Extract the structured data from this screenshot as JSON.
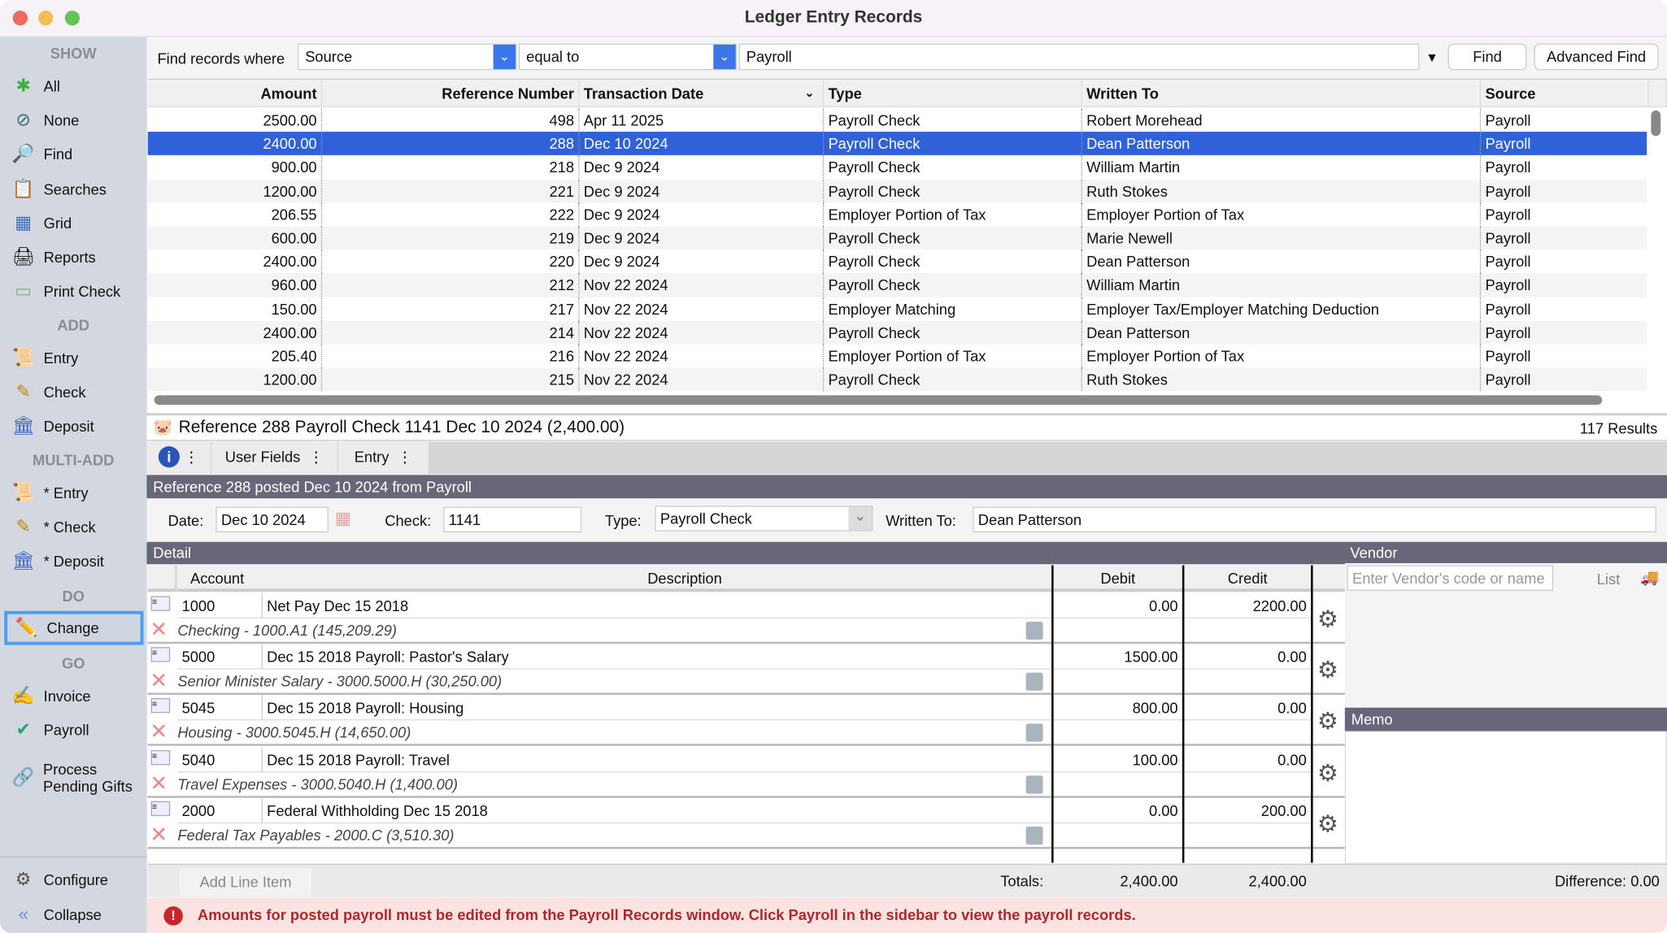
{
  "window": {
    "title": "Ledger Entry Records"
  },
  "sidebar": {
    "sections": {
      "show": "SHOW",
      "add": "ADD",
      "multi_add": "MULTI-ADD",
      "do": "DO",
      "go": "GO"
    },
    "show_items": [
      {
        "label": "All",
        "icon": "asterisk-icon"
      },
      {
        "label": "None",
        "icon": "none-icon"
      },
      {
        "label": "Find",
        "icon": "magnifier-icon"
      },
      {
        "label": "Searches",
        "icon": "searches-icon"
      },
      {
        "label": "Grid",
        "icon": "grid-icon"
      },
      {
        "label": "Reports",
        "icon": "printer-icon"
      },
      {
        "label": "Print Check",
        "icon": "check-print-icon"
      }
    ],
    "add_items": [
      {
        "label": "Entry",
        "icon": "scroll-icon"
      },
      {
        "label": "Check",
        "icon": "check-icon"
      },
      {
        "label": "Deposit",
        "icon": "bank-icon"
      }
    ],
    "multi_items": [
      {
        "label": "* Entry",
        "icon": "scroll-icon"
      },
      {
        "label": "* Check",
        "icon": "check-icon"
      },
      {
        "label": "* Deposit",
        "icon": "bank-icon"
      }
    ],
    "do_items": [
      {
        "label": "Change",
        "icon": "pencil-icon",
        "selected": true
      }
    ],
    "go_items": [
      {
        "label": "Invoice",
        "icon": "invoice-icon"
      },
      {
        "label": "Payroll",
        "icon": "payroll-icon"
      },
      {
        "label": "Process Pending Gifts",
        "icon": "gift-icon"
      }
    ],
    "configure": "Configure",
    "collapse": "Collapse"
  },
  "find": {
    "label": "Find records where",
    "field": "Source",
    "operator": "equal to",
    "value": "Payroll",
    "find_button": "Find",
    "advanced_button": "Advanced Find"
  },
  "table": {
    "columns": [
      "Amount",
      "Reference Number",
      "Transaction Date",
      "Type",
      "Written To",
      "Source"
    ],
    "rows": [
      [
        "2500.00",
        "498",
        "Apr 11 2025",
        "Payroll Check",
        "Robert Morehead",
        "Payroll"
      ],
      [
        "2400.00",
        "288",
        "Dec 10 2024",
        "Payroll Check",
        "Dean Patterson",
        "Payroll"
      ],
      [
        "900.00",
        "218",
        "Dec 9 2024",
        "Payroll Check",
        "William Martin",
        "Payroll"
      ],
      [
        "1200.00",
        "221",
        "Dec 9 2024",
        "Payroll Check",
        "Ruth Stokes",
        "Payroll"
      ],
      [
        "206.55",
        "222",
        "Dec 9 2024",
        "Employer Portion of Tax",
        "Employer Portion of Tax",
        "Payroll"
      ],
      [
        "600.00",
        "219",
        "Dec 9 2024",
        "Payroll Check",
        "Marie Newell",
        "Payroll"
      ],
      [
        "2400.00",
        "220",
        "Dec 9 2024",
        "Payroll Check",
        "Dean Patterson",
        "Payroll"
      ],
      [
        "960.00",
        "212",
        "Nov 22 2024",
        "Payroll Check",
        "William Martin",
        "Payroll"
      ],
      [
        "150.00",
        "217",
        "Nov 22 2024",
        "Employer Matching",
        "Employer Tax/Employer Matching Deduction",
        "Payroll"
      ],
      [
        "2400.00",
        "214",
        "Nov 22 2024",
        "Payroll Check",
        "Dean Patterson",
        "Payroll"
      ],
      [
        "205.40",
        "216",
        "Nov 22 2024",
        "Employer Portion of Tax",
        "Employer Portion of Tax",
        "Payroll"
      ],
      [
        "1200.00",
        "215",
        "Nov 22 2024",
        "Payroll Check",
        "Ruth Stokes",
        "Payroll"
      ]
    ],
    "selected_row": 1
  },
  "detail": {
    "title": "Reference 288 Payroll Check 1141 Dec 10 2024 (2,400.00)",
    "results": "117 Results",
    "tabs": [
      "User Fields",
      "Entry"
    ],
    "posted": "Reference 288 posted Dec 10 2024 from Payroll",
    "date_label": "Date:",
    "date": "Dec 10 2024",
    "check_label": "Check:",
    "check": "1141",
    "type_label": "Type:",
    "type": "Payroll Check",
    "written_label": "Written To:",
    "written": "Dean Patterson",
    "detail_label": "Detail",
    "vendor_label": "Vendor",
    "memo_label": "Memo",
    "vendor_placeholder": "Enter Vendor's code or name",
    "list_label": "List",
    "grid_columns": [
      "Account",
      "Description",
      "Debit",
      "Credit"
    ],
    "lines": [
      {
        "account": "1000",
        "description": "Net Pay Dec 15 2018",
        "debit": "0.00",
        "credit": "2200.00",
        "account_name": "Checking - 1000.A1 (145,209.29)"
      },
      {
        "account": "5000",
        "description": "Dec 15 2018 Payroll: Pastor's Salary",
        "debit": "1500.00",
        "credit": "0.00",
        "account_name": "Senior Minister Salary - 3000.5000.H (30,250.00)"
      },
      {
        "account": "5045",
        "description": "Dec 15 2018 Payroll: Housing",
        "debit": "800.00",
        "credit": "0.00",
        "account_name": "Housing - 3000.5045.H (14,650.00)"
      },
      {
        "account": "5040",
        "description": "Dec 15 2018 Payroll: Travel",
        "debit": "100.00",
        "credit": "0.00",
        "account_name": "Travel Expenses - 3000.5040.H (1,400.00)"
      },
      {
        "account": "2000",
        "description": "Federal Withholding Dec 15 2018",
        "debit": "0.00",
        "credit": "200.00",
        "account_name": "Federal Tax Payables - 2000.C (3,510.30)"
      }
    ],
    "add_line": "Add Line Item",
    "totals_label": "Totals:",
    "total_debit": "2,400.00",
    "total_credit": "2,400.00",
    "difference": "Difference: 0.00"
  },
  "error": {
    "message": "Amounts for posted payroll must be edited from the Payroll Records window. Click Payroll in the sidebar to view the payroll records."
  },
  "colors": {
    "selection": "#2e62d6",
    "header_bar": "#676779",
    "error_text": "#b0262b",
    "error_bg": "#fbe3e1",
    "sidebar": "#d3d7df"
  }
}
